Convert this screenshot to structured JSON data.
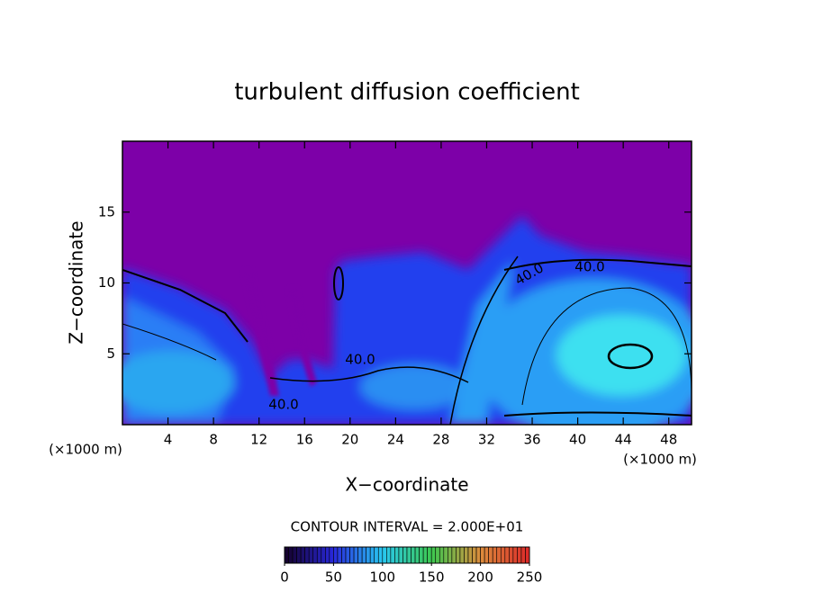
{
  "chart_data": {
    "type": "contour",
    "title": "turbulent diffusion coefficient",
    "x_label": "X−coordinate",
    "y_label": "Z−coordinate",
    "x_unit": "(×1000 m)",
    "y_unit": "(×1000 m)",
    "xlim": [
      0,
      50
    ],
    "xticks": [
      4,
      8,
      12,
      16,
      20,
      24,
      28,
      32,
      36,
      40,
      44,
      48
    ],
    "ylim": [
      0,
      20
    ],
    "yticks": [
      5,
      10,
      15
    ],
    "contour_labels": [
      "40.0",
      "40.0",
      "40.0",
      "40.0"
    ],
    "contour_interval": "CONTOUR INTERVAL = 2.000E+01",
    "colorbar": {
      "lim": [
        0,
        250
      ],
      "ticks": [
        0,
        50,
        100,
        150,
        200,
        250
      ]
    }
  }
}
